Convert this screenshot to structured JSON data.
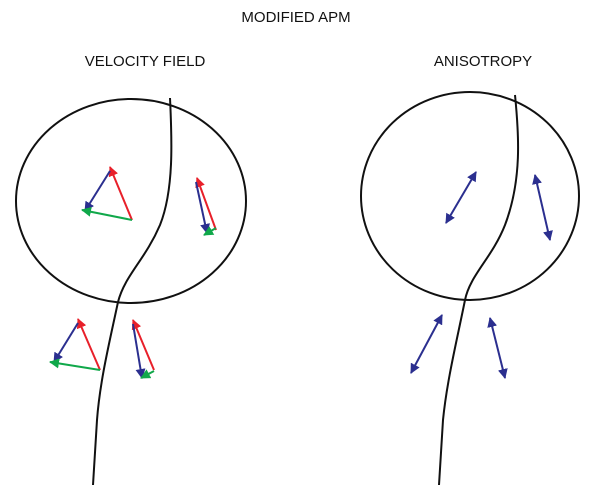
{
  "title": "MODIFIED APM",
  "panels": [
    {
      "label": "VELOCITY FIELD"
    },
    {
      "label": "ANISOTROPY"
    }
  ]
}
